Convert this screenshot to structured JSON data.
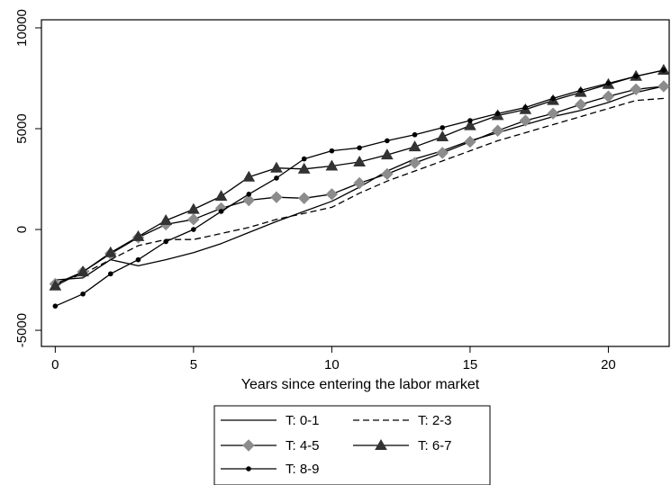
{
  "chart_data": {
    "type": "line",
    "title": "",
    "xlabel": "Years since entering the labor market",
    "ylabel": "",
    "xlim": [
      -0.5,
      22.2
    ],
    "ylim": [
      -5800,
      10400
    ],
    "x_ticks": [
      "0",
      "5",
      "10",
      "15",
      "20"
    ],
    "y_ticks": [
      "-5000",
      "0",
      "5000",
      "10000"
    ],
    "grid": false,
    "legend_position": "bottom",
    "x": [
      0,
      1,
      2,
      3,
      4,
      5,
      6,
      7,
      8,
      9,
      10,
      11,
      12,
      13,
      14,
      15,
      16,
      17,
      18,
      19,
      20,
      21,
      22
    ],
    "series": [
      {
        "name": "T: 0-1",
        "style": "solid",
        "marker": "none",
        "color": "#000000",
        "values": [
          -2500,
          -2400,
          -1500,
          -1800,
          -1500,
          -1150,
          -700,
          -150,
          400,
          900,
          1400,
          2100,
          2900,
          3500,
          3900,
          4400,
          4800,
          5200,
          5600,
          5900,
          6300,
          6800,
          7100
        ]
      },
      {
        "name": "T: 2-3",
        "style": "dashed",
        "marker": "none",
        "color": "#000000",
        "values": [
          -2700,
          -2200,
          -1500,
          -800,
          -500,
          -500,
          -200,
          100,
          500,
          800,
          1100,
          1800,
          2400,
          2900,
          3400,
          3900,
          4400,
          4800,
          5200,
          5600,
          6000,
          6400,
          6500
        ]
      },
      {
        "name": "T: 4-5",
        "style": "solid",
        "marker": "diamond",
        "color": "#000000",
        "marker_color": "#8c8c8c",
        "values": [
          -2700,
          -2100,
          -1200,
          -400,
          250,
          500,
          1050,
          1450,
          1600,
          1550,
          1750,
          2300,
          2750,
          3300,
          3800,
          4350,
          4900,
          5400,
          5750,
          6200,
          6600,
          6950,
          7100
        ]
      },
      {
        "name": "T: 6-7",
        "style": "solid",
        "marker": "triangle",
        "color": "#000000",
        "marker_color": "#333333",
        "values": [
          -2800,
          -2100,
          -1150,
          -350,
          450,
          1000,
          1650,
          2600,
          3050,
          3000,
          3150,
          3350,
          3700,
          4100,
          4600,
          5150,
          5650,
          5950,
          6400,
          6800,
          7200,
          7600,
          7900
        ]
      },
      {
        "name": "T: 8-9",
        "style": "solid",
        "marker": "dot",
        "color": "#000000",
        "values": [
          -3800,
          -3200,
          -2200,
          -1500,
          -600,
          0,
          900,
          1750,
          2550,
          3500,
          3900,
          4050,
          4400,
          4700,
          5050,
          5400,
          5750,
          6050,
          6500,
          6900,
          7250,
          7600,
          7900
        ]
      }
    ]
  }
}
